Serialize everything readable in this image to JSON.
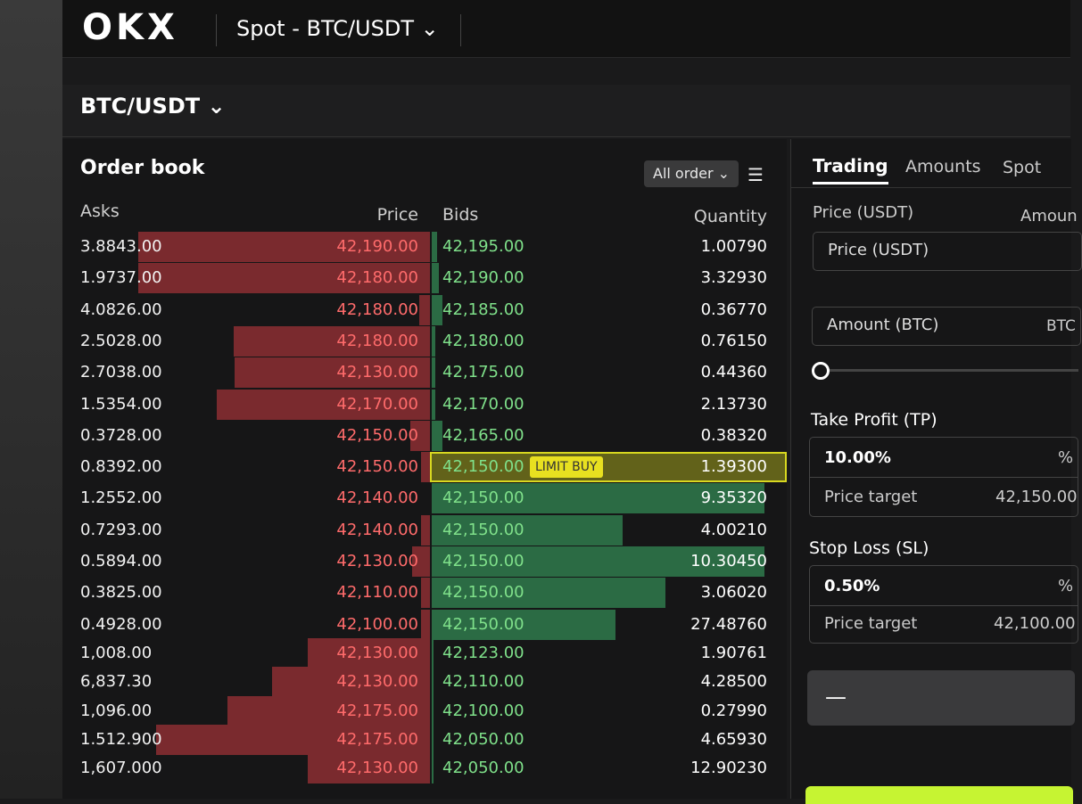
{
  "header": {
    "logo": "OKX",
    "pair_selector": "Spot - BTC/USDT"
  },
  "subheader": {
    "pair": "BTC/USDT"
  },
  "order_book": {
    "title": "Order book",
    "filter": "All order",
    "columns": [
      "Asks",
      "Price",
      "Bids",
      "Quantity"
    ],
    "badge": "LIMIT BUY",
    "rows": [
      [
        "3.8843.00",
        "42,190.00",
        "42,195.00",
        "1.00790"
      ],
      [
        "1.9737.00",
        "42,180.00",
        "42,190.00",
        "3.32930"
      ],
      [
        "4.0826.00",
        "42,180.00",
        "42,185.00",
        "0.36770"
      ],
      [
        "2.5028.00",
        "42,180.00",
        "42,180.00",
        "0.76150"
      ],
      [
        "2.7038.00",
        "42,130.00",
        "42,175.00",
        "0.44360"
      ],
      [
        "1.5354.00",
        "42,170.00",
        "42,170.00",
        "2.13730"
      ],
      [
        "0.3728.00",
        "42,150.00",
        "42,165.00",
        "0.38320"
      ],
      [
        "0.8392.00",
        "42,150.00",
        "42,150.00",
        "1.39300"
      ],
      [
        "1.2552.00",
        "42,140.00",
        "42,150.00",
        "9.35320"
      ],
      [
        "0.7293.00",
        "42,140.00",
        "42,150.00",
        "4.00210"
      ],
      [
        "0.5894.00",
        "42,130.00",
        "42,150.00",
        "10.30450"
      ],
      [
        "0.3825.00",
        "42,110.00",
        "42,150.00",
        "3.06020"
      ],
      [
        "0.4928.00",
        "42,100.00",
        "42,150.00",
        "27.48760"
      ],
      [
        "1,008.00",
        "42,130.00",
        "42,123.00",
        "1.90761"
      ],
      [
        "6,837.30",
        "42,130.00",
        "42,110.00",
        "4.28500"
      ],
      [
        "1,096.00",
        "42,175.00",
        "42,100.00",
        "0.27990"
      ],
      [
        "1.512.900",
        "42,175.00",
        "42,050.00",
        "4.65930"
      ],
      [
        "1,607.000",
        "42,130.00",
        "42,050.00",
        "12.90230"
      ]
    ]
  },
  "trade_panel": {
    "tabs": [
      "Trading",
      "Amounts",
      "Spot"
    ],
    "price_label": "Price (USDT)",
    "amount_label": "Amoun",
    "price_input": "Price (USDT)",
    "amount_input": "Amount (BTC)",
    "amount_unit": "BTC",
    "take_profit": {
      "title": "Take Profit (TP)",
      "percent": "10.00%",
      "unit": "%",
      "target_label": "Price target",
      "target": "42,150.00"
    },
    "stop_loss": {
      "title": "Stop Loss (SL)",
      "percent": "0.50%",
      "unit": "%",
      "target_label": "Price target",
      "target": "42,100.00"
    },
    "button": "—"
  }
}
